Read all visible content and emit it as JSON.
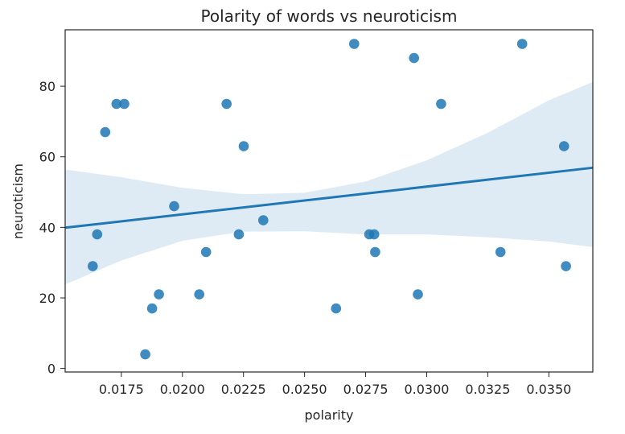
{
  "chart_data": {
    "type": "scatter",
    "title": "Polarity of words vs neuroticism",
    "xlabel": "polarity",
    "ylabel": "neuroticism",
    "xlim": [
      0.0152,
      0.0368
    ],
    "ylim": [
      -1,
      96
    ],
    "x_ticks": [
      0.0175,
      0.02,
      0.0225,
      0.025,
      0.0275,
      0.03,
      0.0325,
      0.035
    ],
    "x_tick_labels": [
      "0.0175",
      "0.0200",
      "0.0225",
      "0.0250",
      "0.0275",
      "0.0300",
      "0.0325",
      "0.0350"
    ],
    "y_ticks": [
      0,
      20,
      40,
      60,
      80
    ],
    "y_tick_labels": [
      "0",
      "20",
      "40",
      "60",
      "80"
    ],
    "grid": false,
    "series": [
      {
        "color": "#1f77b4",
        "points": [
          {
            "x": 0.01633,
            "y": 29
          },
          {
            "x": 0.01651,
            "y": 38
          },
          {
            "x": 0.01684,
            "y": 67
          },
          {
            "x": 0.0173,
            "y": 75
          },
          {
            "x": 0.01762,
            "y": 75
          },
          {
            "x": 0.01848,
            "y": 4
          },
          {
            "x": 0.01876,
            "y": 17
          },
          {
            "x": 0.01904,
            "y": 21
          },
          {
            "x": 0.01966,
            "y": 46
          },
          {
            "x": 0.02069,
            "y": 21
          },
          {
            "x": 0.02097,
            "y": 33
          },
          {
            "x": 0.02181,
            "y": 75
          },
          {
            "x": 0.02231,
            "y": 38
          },
          {
            "x": 0.02251,
            "y": 63
          },
          {
            "x": 0.02331,
            "y": 42
          },
          {
            "x": 0.02629,
            "y": 17
          },
          {
            "x": 0.02703,
            "y": 92
          },
          {
            "x": 0.02765,
            "y": 38
          },
          {
            "x": 0.02785,
            "y": 38
          },
          {
            "x": 0.02789,
            "y": 33
          },
          {
            "x": 0.02948,
            "y": 88
          },
          {
            "x": 0.02964,
            "y": 21
          },
          {
            "x": 0.03059,
            "y": 75
          },
          {
            "x": 0.03302,
            "y": 33
          },
          {
            "x": 0.03391,
            "y": 92
          },
          {
            "x": 0.03562,
            "y": 63
          },
          {
            "x": 0.0357,
            "y": 29
          }
        ]
      }
    ],
    "regression": {
      "color": "#1f77b4",
      "line": [
        [
          0.0152,
          39.9
        ],
        [
          0.0368,
          56.9
        ]
      ],
      "ci_upper": [
        [
          0.0152,
          56.4
        ],
        [
          0.0175,
          54.2
        ],
        [
          0.02,
          51.2
        ],
        [
          0.0225,
          49.4
        ],
        [
          0.025,
          49.8
        ],
        [
          0.0275,
          53.0
        ],
        [
          0.03,
          59.0
        ],
        [
          0.0325,
          66.8
        ],
        [
          0.035,
          76.0
        ],
        [
          0.0368,
          81.2
        ]
      ],
      "ci_lower": [
        [
          0.0152,
          23.8
        ],
        [
          0.0175,
          30.6
        ],
        [
          0.02,
          36.2
        ],
        [
          0.0225,
          38.8
        ],
        [
          0.025,
          38.9
        ],
        [
          0.0275,
          38.0
        ],
        [
          0.03,
          38.0
        ],
        [
          0.0325,
          37.2
        ],
        [
          0.035,
          36.0
        ],
        [
          0.0368,
          34.4
        ]
      ],
      "ci_color": "#1f77b4"
    }
  }
}
